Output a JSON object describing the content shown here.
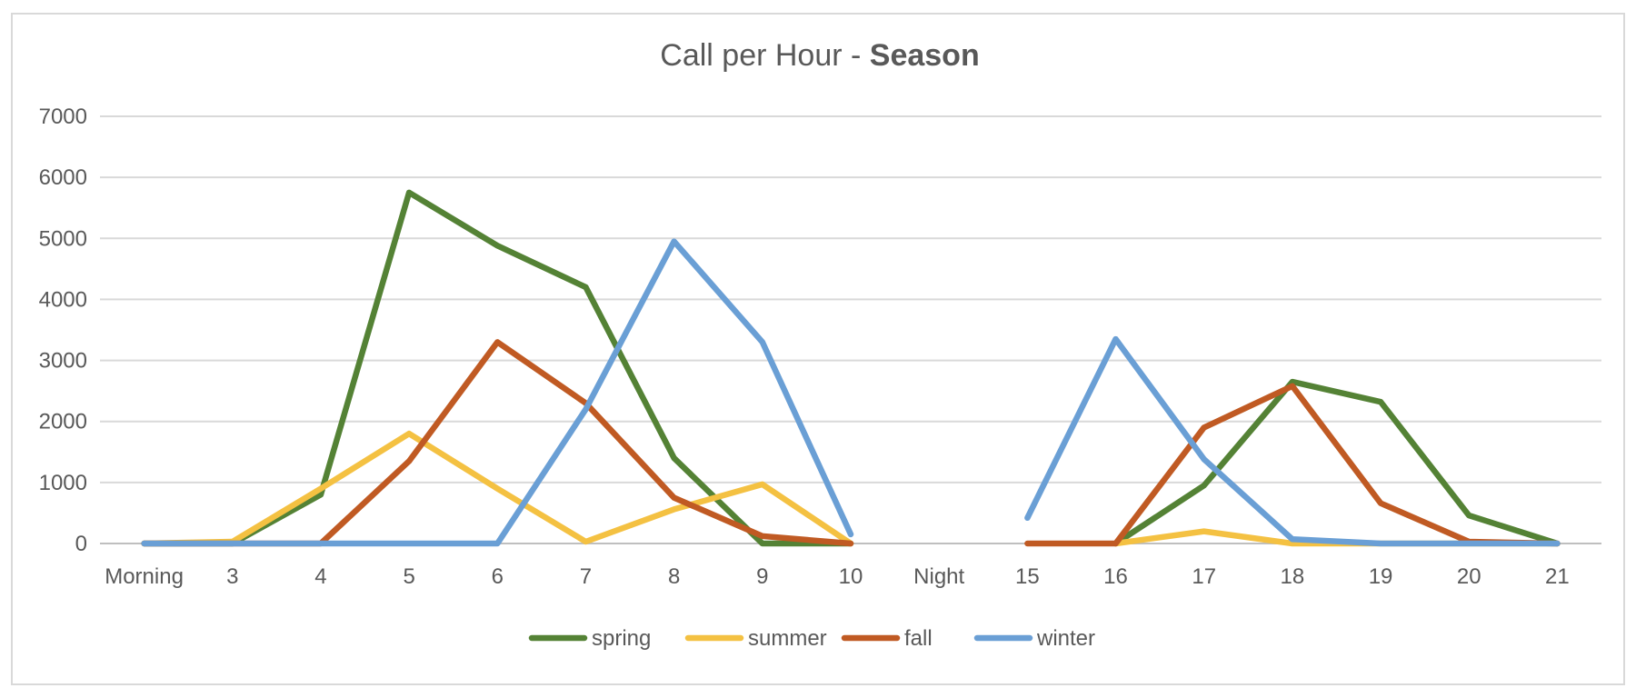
{
  "chart_data": {
    "type": "line",
    "title": "Call per Hour - ",
    "title_bold": "Season",
    "xlabel": "",
    "ylabel": "",
    "ylim": [
      0,
      7000
    ],
    "yticks": [
      0,
      1000,
      2000,
      3000,
      4000,
      5000,
      6000,
      7000
    ],
    "categories": [
      "Morning",
      "3",
      "4",
      "5",
      "6",
      "7",
      "8",
      "9",
      "10",
      "Night",
      "15",
      "16",
      "17",
      "18",
      "19",
      "20",
      "21"
    ],
    "grid": true,
    "legend_position": "bottom",
    "series": [
      {
        "name": "spring",
        "color": "#548235",
        "values": [
          0,
          0,
          800,
          5750,
          4880,
          4200,
          1400,
          0,
          0,
          null,
          null,
          0,
          950,
          2650,
          2320,
          460,
          0
        ]
      },
      {
        "name": "summer",
        "color": "#f4c142",
        "values": [
          0,
          30,
          900,
          1800,
          900,
          30,
          560,
          970,
          0,
          null,
          null,
          0,
          200,
          0,
          0,
          0,
          0
        ]
      },
      {
        "name": "fall",
        "color": "#c05a23",
        "values": [
          0,
          0,
          0,
          1350,
          3300,
          2300,
          750,
          120,
          0,
          null,
          0,
          0,
          1900,
          2580,
          660,
          30,
          0
        ]
      },
      {
        "name": "winter",
        "color": "#6a9fd5",
        "values": [
          0,
          0,
          0,
          0,
          0,
          2200,
          4950,
          3300,
          150,
          null,
          420,
          3350,
          1380,
          70,
          0,
          0,
          0
        ]
      }
    ]
  }
}
